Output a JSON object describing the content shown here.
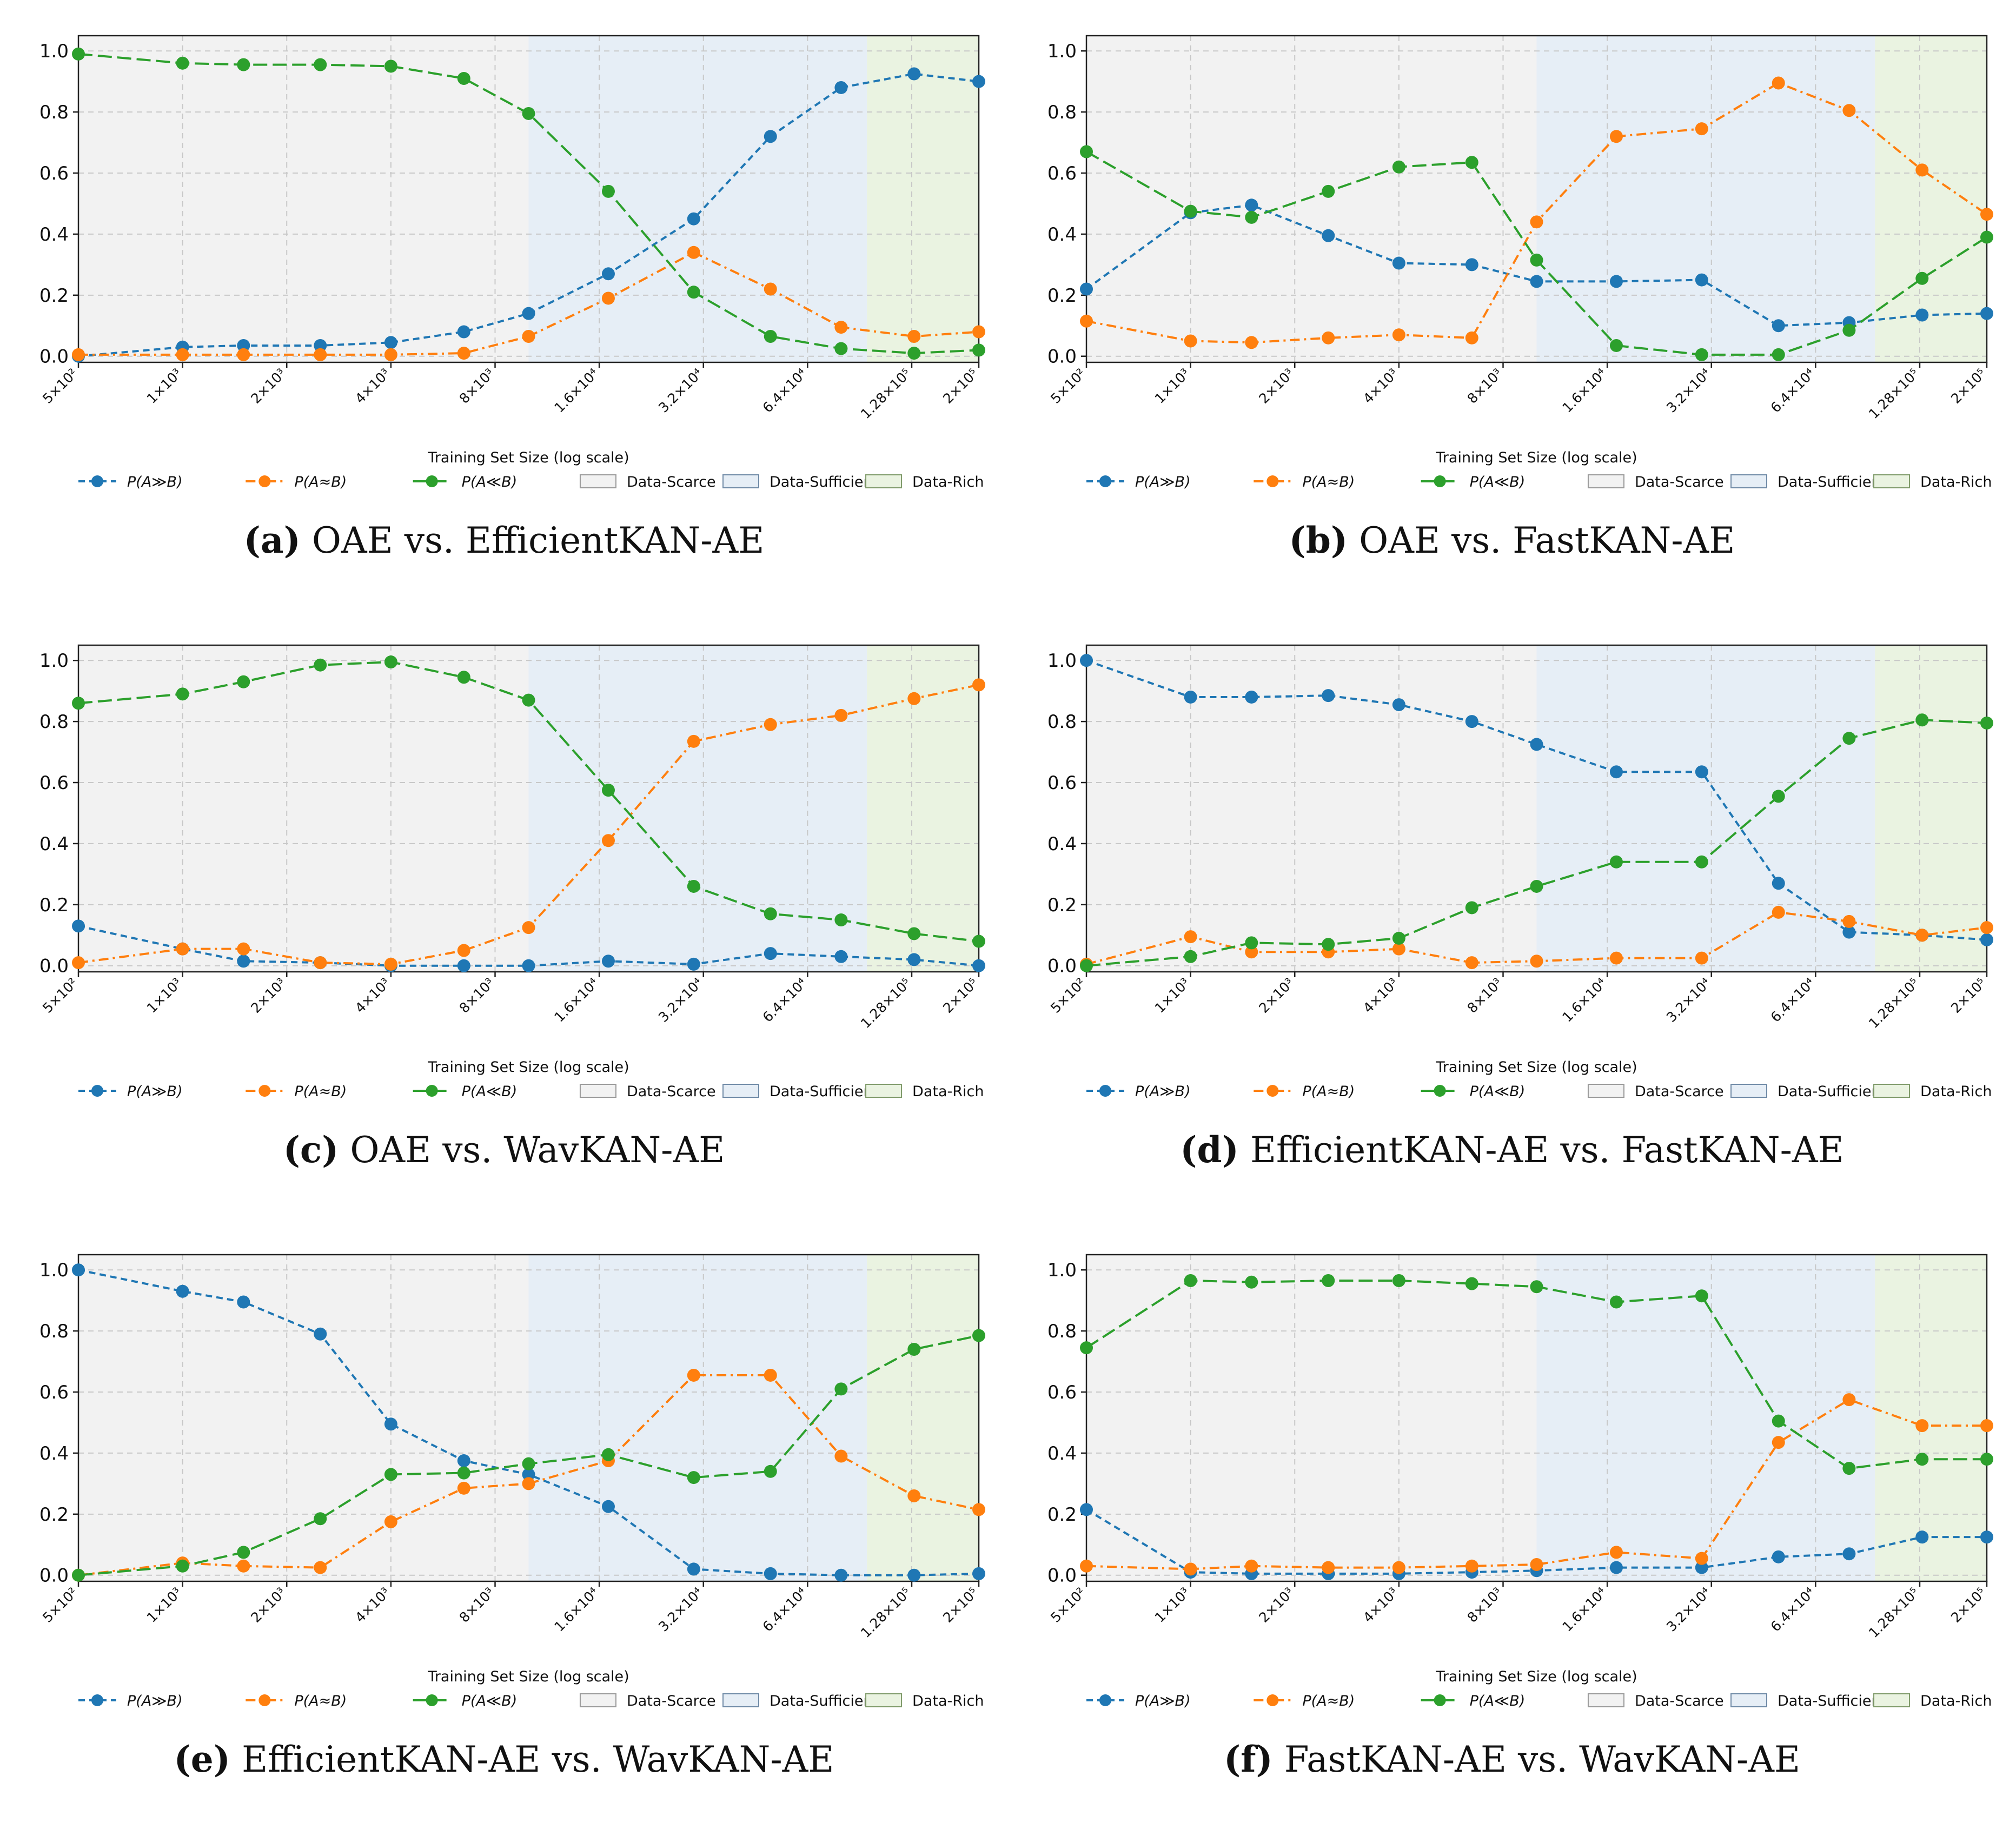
{
  "x_ticks": [
    "5×10²",
    "1×10³",
    "2×10³",
    "4×10³",
    "8×10³",
    "1.6×10⁴",
    "3.2×10⁴",
    "6.4×10⁴",
    "1.28×10⁵",
    "2×10⁵"
  ],
  "y_ticks": [
    "0.0",
    "0.2",
    "0.4",
    "0.6",
    "0.8",
    "1.0"
  ],
  "xlabel": "Training Set Size (log scale)",
  "legend": {
    "series": [
      "P(A≫B)",
      "P(A≈B)",
      "P(A≪B)"
    ],
    "regions": [
      "Data-Scarce",
      "Data-Sufficient",
      "Data-Rich"
    ]
  },
  "colors": {
    "series": [
      "#1f77b4",
      "#ff7f0e",
      "#2ca02c"
    ],
    "regions": [
      "#f2f2f2",
      "#e6eef6",
      "#eaf3e1"
    ],
    "region_edges": [
      "#9a9a9a",
      "#6f8aa6",
      "#7f9a6a"
    ]
  },
  "panels": [
    {
      "letter": "(a)",
      "title": "OAE vs. EfficientKAN-AE"
    },
    {
      "letter": "(b)",
      "title": "OAE vs. FastKAN-AE"
    },
    {
      "letter": "(c)",
      "title": "OAE vs. WavKAN-AE"
    },
    {
      "letter": "(d)",
      "title": "EfficientKAN-AE vs. FastKAN-AE"
    },
    {
      "letter": "(e)",
      "title": "EfficientKAN-AE vs. WavKAN-AE"
    },
    {
      "letter": "(f)",
      "title": "FastKAN-AE vs. WavKAN-AE"
    }
  ],
  "chart_data": [
    {
      "type": "line",
      "title": "OAE vs. EfficientKAN-AE",
      "xlabel": "Training Set Size (log scale)",
      "ylabel": "",
      "xscale": "log",
      "xlim": [
        500,
        200000
      ],
      "ylim": [
        -0.02,
        1.05
      ],
      "x": [
        500,
        1000,
        1500,
        2500,
        4000,
        6500,
        10000,
        17000,
        30000,
        50000,
        80000,
        130000,
        200000
      ],
      "regions": [
        {
          "name": "Data-Scarce",
          "from": 500,
          "to": 10000
        },
        {
          "name": "Data-Sufficient",
          "from": 10000,
          "to": 95000
        },
        {
          "name": "Data-Rich",
          "from": 95000,
          "to": 200000
        }
      ],
      "series": [
        {
          "name": "P(A≫B)",
          "values": [
            0.0,
            0.03,
            0.035,
            0.035,
            0.045,
            0.08,
            0.14,
            0.27,
            0.45,
            0.72,
            0.88,
            0.925,
            0.9
          ]
        },
        {
          "name": "P(A≈B)",
          "values": [
            0.005,
            0.005,
            0.005,
            0.005,
            0.005,
            0.01,
            0.065,
            0.19,
            0.34,
            0.22,
            0.095,
            0.065,
            0.08
          ]
        },
        {
          "name": "P(A≪B)",
          "values": [
            0.99,
            0.96,
            0.955,
            0.955,
            0.95,
            0.91,
            0.795,
            0.54,
            0.21,
            0.065,
            0.025,
            0.01,
            0.02
          ]
        }
      ]
    },
    {
      "type": "line",
      "title": "OAE vs. FastKAN-AE",
      "xlabel": "Training Set Size (log scale)",
      "ylabel": "",
      "xscale": "log",
      "xlim": [
        500,
        200000
      ],
      "ylim": [
        -0.02,
        1.05
      ],
      "x": [
        500,
        1000,
        1500,
        2500,
        4000,
        6500,
        10000,
        17000,
        30000,
        50000,
        80000,
        130000,
        200000
      ],
      "regions": [
        {
          "name": "Data-Scarce",
          "from": 500,
          "to": 10000
        },
        {
          "name": "Data-Sufficient",
          "from": 10000,
          "to": 95000
        },
        {
          "name": "Data-Rich",
          "from": 95000,
          "to": 200000
        }
      ],
      "series": [
        {
          "name": "P(A≫B)",
          "values": [
            0.22,
            0.47,
            0.495,
            0.395,
            0.305,
            0.3,
            0.245,
            0.245,
            0.25,
            0.1,
            0.11,
            0.135,
            0.14
          ]
        },
        {
          "name": "P(A≈B)",
          "values": [
            0.115,
            0.05,
            0.045,
            0.06,
            0.07,
            0.06,
            0.44,
            0.72,
            0.745,
            0.895,
            0.805,
            0.61,
            0.465
          ]
        },
        {
          "name": "P(A≪B)",
          "values": [
            0.67,
            0.475,
            0.455,
            0.54,
            0.62,
            0.635,
            0.315,
            0.035,
            0.005,
            0.005,
            0.085,
            0.255,
            0.39
          ]
        }
      ]
    },
    {
      "type": "line",
      "title": "OAE vs. WavKAN-AE",
      "xlabel": "Training Set Size (log scale)",
      "ylabel": "",
      "xscale": "log",
      "xlim": [
        500,
        200000
      ],
      "ylim": [
        -0.02,
        1.05
      ],
      "x": [
        500,
        1000,
        1500,
        2500,
        4000,
        6500,
        10000,
        17000,
        30000,
        50000,
        80000,
        130000,
        200000
      ],
      "regions": [
        {
          "name": "Data-Scarce",
          "from": 500,
          "to": 10000
        },
        {
          "name": "Data-Sufficient",
          "from": 10000,
          "to": 95000
        },
        {
          "name": "Data-Rich",
          "from": 95000,
          "to": 200000
        }
      ],
      "series": [
        {
          "name": "P(A≫B)",
          "values": [
            0.13,
            0.055,
            0.015,
            0.01,
            0.0,
            0.0,
            0.0,
            0.015,
            0.005,
            0.04,
            0.03,
            0.02,
            0.0
          ]
        },
        {
          "name": "P(A≈B)",
          "values": [
            0.01,
            0.055,
            0.055,
            0.01,
            0.005,
            0.05,
            0.125,
            0.41,
            0.735,
            0.79,
            0.82,
            0.875,
            0.92
          ]
        },
        {
          "name": "P(A≪B)",
          "values": [
            0.86,
            0.89,
            0.93,
            0.985,
            0.995,
            0.945,
            0.87,
            0.575,
            0.26,
            0.17,
            0.15,
            0.105,
            0.08
          ]
        }
      ]
    },
    {
      "type": "line",
      "title": "EfficientKAN-AE vs. FastKAN-AE",
      "xlabel": "Training Set Size (log scale)",
      "ylabel": "",
      "xscale": "log",
      "xlim": [
        500,
        200000
      ],
      "ylim": [
        -0.02,
        1.05
      ],
      "x": [
        500,
        1000,
        1500,
        2500,
        4000,
        6500,
        10000,
        17000,
        30000,
        50000,
        80000,
        130000,
        200000
      ],
      "regions": [
        {
          "name": "Data-Scarce",
          "from": 500,
          "to": 10000
        },
        {
          "name": "Data-Sufficient",
          "from": 10000,
          "to": 95000
        },
        {
          "name": "Data-Rich",
          "from": 95000,
          "to": 200000
        }
      ],
      "series": [
        {
          "name": "P(A≫B)",
          "values": [
            1.0,
            0.88,
            0.88,
            0.885,
            0.855,
            0.8,
            0.725,
            0.635,
            0.635,
            0.27,
            0.11,
            0.1,
            0.085
          ]
        },
        {
          "name": "P(A≈B)",
          "values": [
            0.005,
            0.095,
            0.045,
            0.045,
            0.055,
            0.01,
            0.015,
            0.025,
            0.025,
            0.175,
            0.145,
            0.1,
            0.125
          ]
        },
        {
          "name": "P(A≪B)",
          "values": [
            0.0,
            0.03,
            0.075,
            0.07,
            0.09,
            0.19,
            0.26,
            0.34,
            0.34,
            0.555,
            0.745,
            0.805,
            0.795
          ]
        }
      ]
    },
    {
      "type": "line",
      "title": "EfficientKAN-AE vs. WavKAN-AE",
      "xlabel": "Training Set Size (log scale)",
      "ylabel": "",
      "xscale": "log",
      "xlim": [
        500,
        200000
      ],
      "ylim": [
        -0.02,
        1.05
      ],
      "x": [
        500,
        1000,
        1500,
        2500,
        4000,
        6500,
        10000,
        17000,
        30000,
        50000,
        80000,
        130000,
        200000
      ],
      "regions": [
        {
          "name": "Data-Scarce",
          "from": 500,
          "to": 10000
        },
        {
          "name": "Data-Sufficient",
          "from": 10000,
          "to": 95000
        },
        {
          "name": "Data-Rich",
          "from": 95000,
          "to": 200000
        }
      ],
      "series": [
        {
          "name": "P(A≫B)",
          "values": [
            1.0,
            0.93,
            0.895,
            0.79,
            0.495,
            0.375,
            0.33,
            0.225,
            0.02,
            0.005,
            0.0,
            0.0,
            0.005
          ]
        },
        {
          "name": "P(A≈B)",
          "values": [
            0.0,
            0.04,
            0.03,
            0.025,
            0.175,
            0.285,
            0.3,
            0.375,
            0.655,
            0.655,
            0.39,
            0.26,
            0.215
          ]
        },
        {
          "name": "P(A≪B)",
          "values": [
            0.0,
            0.03,
            0.075,
            0.185,
            0.33,
            0.335,
            0.365,
            0.395,
            0.32,
            0.34,
            0.61,
            0.74,
            0.785
          ]
        }
      ]
    },
    {
      "type": "line",
      "title": "FastKAN-AE vs. WavKAN-AE",
      "xlabel": "Training Set Size (log scale)",
      "ylabel": "",
      "xscale": "log",
      "xlim": [
        500,
        200000
      ],
      "ylim": [
        -0.02,
        1.05
      ],
      "x": [
        500,
        1000,
        1500,
        2500,
        4000,
        6500,
        10000,
        17000,
        30000,
        50000,
        80000,
        130000,
        200000
      ],
      "regions": [
        {
          "name": "Data-Scarce",
          "from": 500,
          "to": 10000
        },
        {
          "name": "Data-Sufficient",
          "from": 10000,
          "to": 95000
        },
        {
          "name": "Data-Rich",
          "from": 95000,
          "to": 200000
        }
      ],
      "series": [
        {
          "name": "P(A≫B)",
          "values": [
            0.215,
            0.01,
            0.005,
            0.005,
            0.005,
            0.01,
            0.015,
            0.025,
            0.025,
            0.06,
            0.07,
            0.125,
            0.125
          ]
        },
        {
          "name": "P(A≈B)",
          "values": [
            0.03,
            0.02,
            0.03,
            0.025,
            0.025,
            0.03,
            0.035,
            0.075,
            0.055,
            0.435,
            0.575,
            0.49,
            0.49
          ]
        },
        {
          "name": "P(A≪B)",
          "values": [
            0.745,
            0.965,
            0.96,
            0.965,
            0.965,
            0.955,
            0.945,
            0.895,
            0.915,
            0.505,
            0.35,
            0.38,
            0.38
          ]
        }
      ]
    }
  ]
}
